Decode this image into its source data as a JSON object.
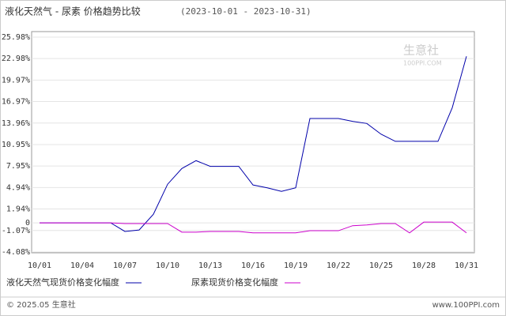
{
  "chart_data": {
    "type": "line",
    "title": "液化天然气 - 尿素 价格趋势比较",
    "date_range": "(2023-10-01 - 2023-10-31)",
    "watermark": "生意社",
    "watermark_url": "100PPI.COM",
    "footer_left": "© 2025.05 生意社",
    "footer_right": "www.100PPI.com",
    "categories": [
      "10/01",
      null,
      null,
      "10/04",
      null,
      null,
      "10/07",
      null,
      null,
      "10/10",
      null,
      null,
      "10/13",
      null,
      null,
      "10/16",
      null,
      null,
      "10/19",
      null,
      null,
      "10/22",
      null,
      null,
      "10/25",
      null,
      null,
      "10/28",
      null,
      null,
      "10/31"
    ],
    "series": [
      {
        "name": "液化天然气现货价格变化幅度",
        "color": "#0000aa",
        "values": [
          0,
          0,
          0,
          0,
          0,
          0,
          -1.2,
          -1.0,
          1.2,
          5.4,
          7.6,
          8.7,
          7.9,
          7.9,
          7.9,
          5.3,
          4.9,
          4.4,
          4.9,
          14.6,
          14.6,
          14.6,
          14.2,
          13.9,
          12.4,
          11.4,
          11.4,
          11.4,
          11.4,
          16.1,
          23.3
        ]
      },
      {
        "name": "尿素现货价格变化幅度",
        "color": "#cc00cc",
        "values": [
          0,
          0,
          0,
          0,
          0,
          0,
          -0.1,
          -0.1,
          -0.1,
          -0.1,
          -1.3,
          -1.3,
          -1.2,
          -1.2,
          -1.2,
          -1.4,
          -1.4,
          -1.4,
          -1.4,
          -1.1,
          -1.1,
          -1.1,
          -0.4,
          -0.3,
          -0.1,
          -0.1,
          -1.4,
          0.1,
          0.1,
          0.1,
          -1.4
        ]
      }
    ],
    "ylim": [
      -4.08,
      25.98
    ],
    "yticks": [
      {
        "value": -4.08,
        "label": "-4.08%"
      },
      {
        "value": -1.07,
        "label": "-1.07%"
      },
      0,
      {
        "value": 1.94,
        "label": "1.94%"
      },
      {
        "value": 4.94,
        "label": "4.94%"
      },
      {
        "value": 7.95,
        "label": "7.95%"
      },
      {
        "value": 10.95,
        "label": "10.95%"
      },
      {
        "value": 13.96,
        "label": "13.96%"
      },
      {
        "value": 16.97,
        "label": "16.97%"
      },
      {
        "value": 19.97,
        "label": "19.97%"
      },
      {
        "value": 22.98,
        "label": "22.98%"
      },
      {
        "value": 25.98,
        "label": "25.98%"
      }
    ],
    "grid": true
  }
}
